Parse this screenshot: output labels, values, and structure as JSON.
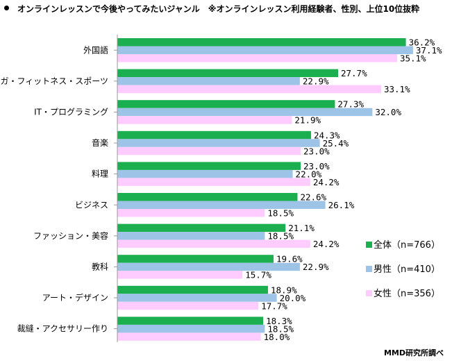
{
  "title": "オンラインレッスンで今後やってみたいジャンル　※オンラインレッスン利用経験者、性別、上位10位抜粋",
  "credit": "MMD研究所調べ",
  "colors": {
    "series": [
      "#1BAF4F",
      "#9DC3E6",
      "#FFCCFF"
    ]
  },
  "chart_data": {
    "type": "bar",
    "orientation": "horizontal",
    "title": "オンラインレッスンで今後やってみたいジャンル　※オンラインレッスン利用経験者、性別、上位10位抜粋",
    "unit": "%",
    "xlim": [
      0,
      45
    ],
    "categories": [
      "外国語",
      "ヨガ・フィットネス・スポーツ",
      "IT・プログラミング",
      "音楽",
      "料理",
      "ビジネス",
      "ファッション・美容",
      "教科",
      "アート・デザイン",
      "裁縫・アクセサリー作り"
    ],
    "series": [
      {
        "name": "全体（n=766）",
        "values": [
          36.2,
          27.7,
          27.3,
          24.3,
          23.0,
          22.6,
          21.1,
          19.6,
          18.9,
          18.3
        ]
      },
      {
        "name": "男性（n=410）",
        "values": [
          37.1,
          22.9,
          32.0,
          25.4,
          22.0,
          26.1,
          18.5,
          22.9,
          20.0,
          18.5
        ]
      },
      {
        "name": "女性（n=356）",
        "values": [
          35.1,
          33.1,
          21.9,
          23.0,
          24.2,
          18.5,
          24.2,
          15.7,
          17.7,
          18.0
        ]
      }
    ]
  }
}
